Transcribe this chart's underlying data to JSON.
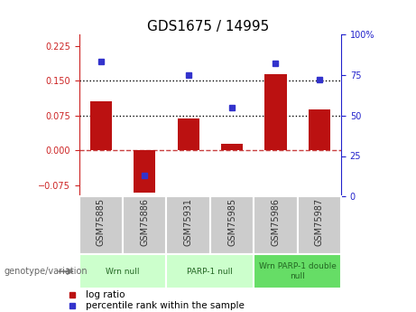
{
  "title": "GDS1675 / 14995",
  "samples": [
    "GSM75885",
    "GSM75886",
    "GSM75931",
    "GSM75985",
    "GSM75986",
    "GSM75987"
  ],
  "log_ratio": [
    0.105,
    -0.092,
    0.068,
    0.013,
    0.165,
    0.088
  ],
  "percentile_rank": [
    83,
    13,
    75,
    55,
    82,
    72
  ],
  "bar_color": "#bb1111",
  "dot_color": "#3333cc",
  "ylim_left": [
    -0.1,
    0.25
  ],
  "ylim_right": [
    0,
    100
  ],
  "yticks_left": [
    -0.075,
    0,
    0.075,
    0.15,
    0.225
  ],
  "yticks_right": [
    0,
    25,
    50,
    75,
    100
  ],
  "hlines": [
    0.075,
    0.15
  ],
  "zero_line": 0,
  "groups": [
    {
      "label": "Wrn null",
      "start": 0,
      "end": 2
    },
    {
      "label": "PARP-1 null",
      "start": 2,
      "end": 4
    },
    {
      "label": "Wrn PARP-1 double\nnull",
      "start": 4,
      "end": 6
    }
  ],
  "group_colors": [
    "#ccffcc",
    "#ccffcc",
    "#66dd66"
  ],
  "legend_bar_label": "log ratio",
  "legend_dot_label": "percentile rank within the sample",
  "genotype_label": "genotype/variation",
  "bg_plot": "#ffffff",
  "bg_sample_strip": "#cccccc",
  "tick_color_left": "#cc2222",
  "tick_color_right": "#2222cc",
  "title_fontsize": 11
}
